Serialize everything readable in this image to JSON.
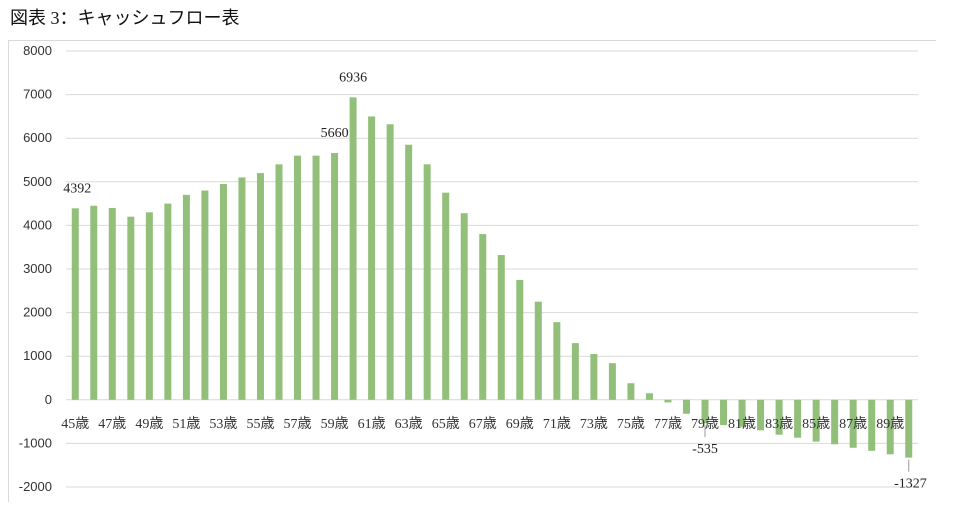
{
  "page": {
    "title": "図表 3：キャッシュフロー表"
  },
  "chart_data": {
    "type": "bar",
    "title": "",
    "xlabel": "",
    "ylabel": "",
    "ylim": [
      -2000,
      8000
    ],
    "yticks": [
      8000,
      7000,
      6000,
      5000,
      4000,
      3000,
      2000,
      1000,
      0,
      -1000,
      -2000
    ],
    "grid": true,
    "legend": "none",
    "bar_color": "#92c07a",
    "grid_color": "#d9d9d9",
    "categories": [
      "45歳",
      "46歳",
      "47歳",
      "48歳",
      "49歳",
      "50歳",
      "51歳",
      "52歳",
      "53歳",
      "54歳",
      "55歳",
      "56歳",
      "57歳",
      "58歳",
      "59歳",
      "60歳",
      "61歳",
      "62歳",
      "63歳",
      "64歳",
      "65歳",
      "66歳",
      "67歳",
      "68歳",
      "69歳",
      "70歳",
      "71歳",
      "72歳",
      "73歳",
      "74歳",
      "75歳",
      "76歳",
      "77歳",
      "78歳",
      "79歳",
      "80歳",
      "81歳",
      "82歳",
      "83歳",
      "84歳",
      "85歳",
      "86歳",
      "87歳",
      "88歳",
      "89歳",
      "90歳"
    ],
    "labeled_ticks": [
      "45歳",
      "47歳",
      "49歳",
      "51歳",
      "53歳",
      "55歳",
      "57歳",
      "59歳",
      "61歳",
      "63歳",
      "65歳",
      "67歳",
      "69歳",
      "71歳",
      "73歳",
      "75歳",
      "77歳",
      "79歳",
      "81歳",
      "83歳",
      "85歳",
      "87歳",
      "89歳"
    ],
    "values": [
      4392,
      4450,
      4400,
      4200,
      4300,
      4500,
      4700,
      4800,
      4950,
      5100,
      5200,
      5400,
      5600,
      5600,
      5660,
      6936,
      6500,
      6320,
      5850,
      5400,
      4750,
      4280,
      3800,
      3320,
      2750,
      2250,
      1780,
      1300,
      1050,
      840,
      380,
      150,
      -60,
      -320,
      -535,
      -580,
      -620,
      -700,
      -800,
      -870,
      -960,
      -1020,
      -1100,
      -1170,
      -1250,
      -1327
    ],
    "data_labels": [
      {
        "category": "45歳",
        "text": "4392"
      },
      {
        "category": "59歳",
        "text": "5660"
      },
      {
        "category": "60歳",
        "text": "6936"
      },
      {
        "category": "79歳",
        "text": "-535"
      },
      {
        "category": "90歳",
        "text": "-1327"
      }
    ]
  }
}
